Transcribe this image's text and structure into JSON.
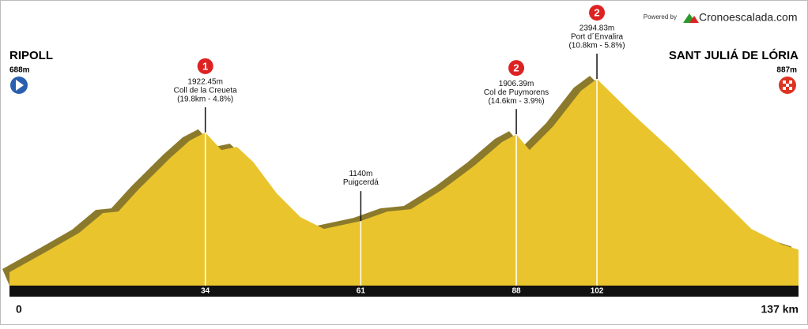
{
  "chart_data": {
    "type": "profile",
    "powered_by": "Powered by",
    "brand": "Cronoescalada.com",
    "start": {
      "name": "RIPOLL",
      "elevation": 688,
      "elevation_label": "688m"
    },
    "finish": {
      "name": "SANT JULIÁ DE LÓRIA",
      "elevation": 887,
      "elevation_label": "887m"
    },
    "x": [
      0,
      6.6,
      12.1,
      16.2,
      18.9,
      22.4,
      27.9,
      31.3,
      34,
      36.8,
      39.5,
      42.3,
      46.4,
      50.5,
      54.6,
      61,
      65.6,
      69.7,
      75.2,
      80.7,
      85.5,
      88,
      90.3,
      94.4,
      99.2,
      102,
      108.3,
      115,
      121.9,
      128.8,
      134.2,
      137
    ],
    "values": [
      688,
      876,
      1036,
      1210,
      1224,
      1419,
      1697,
      1851,
      1922,
      1767,
      1795,
      1663,
      1384,
      1175,
      1071,
      1140,
      1224,
      1245,
      1419,
      1628,
      1837,
      1906,
      1767,
      1976,
      2289,
      2394,
      2080,
      1767,
      1419,
      1071,
      932,
      887
    ],
    "xlim": [
      0,
      137
    ],
    "ylim": [
      570,
      2660
    ],
    "xticks": [
      0,
      34,
      61,
      88,
      102,
      {
        "value": 137,
        "label": "137 km"
      }
    ],
    "color": "#e9c42c",
    "shadow_color": "#8c7a2c",
    "climbs": [
      {
        "category": 1,
        "km": 34,
        "elevation": 1922.45,
        "elevation_label": "1922.45m",
        "name": "Coll de la Creueta",
        "detail": "(19.8km - 4.8%)"
      },
      {
        "km": 61,
        "elevation": 1140,
        "elevation_label": "1140m",
        "name": "Puigcerdá"
      },
      {
        "category": 2,
        "km": 88,
        "elevation": 1906.39,
        "elevation_label": "1906.39m",
        "name": "Col de Puymorens",
        "detail": "(14.6km - 3.9%)"
      },
      {
        "category": 2,
        "km": 102,
        "elevation": 2394.83,
        "elevation_label": "2394.83m",
        "name": "Port d´Envalira",
        "detail": "(10.8km - 5.8%)"
      }
    ]
  }
}
